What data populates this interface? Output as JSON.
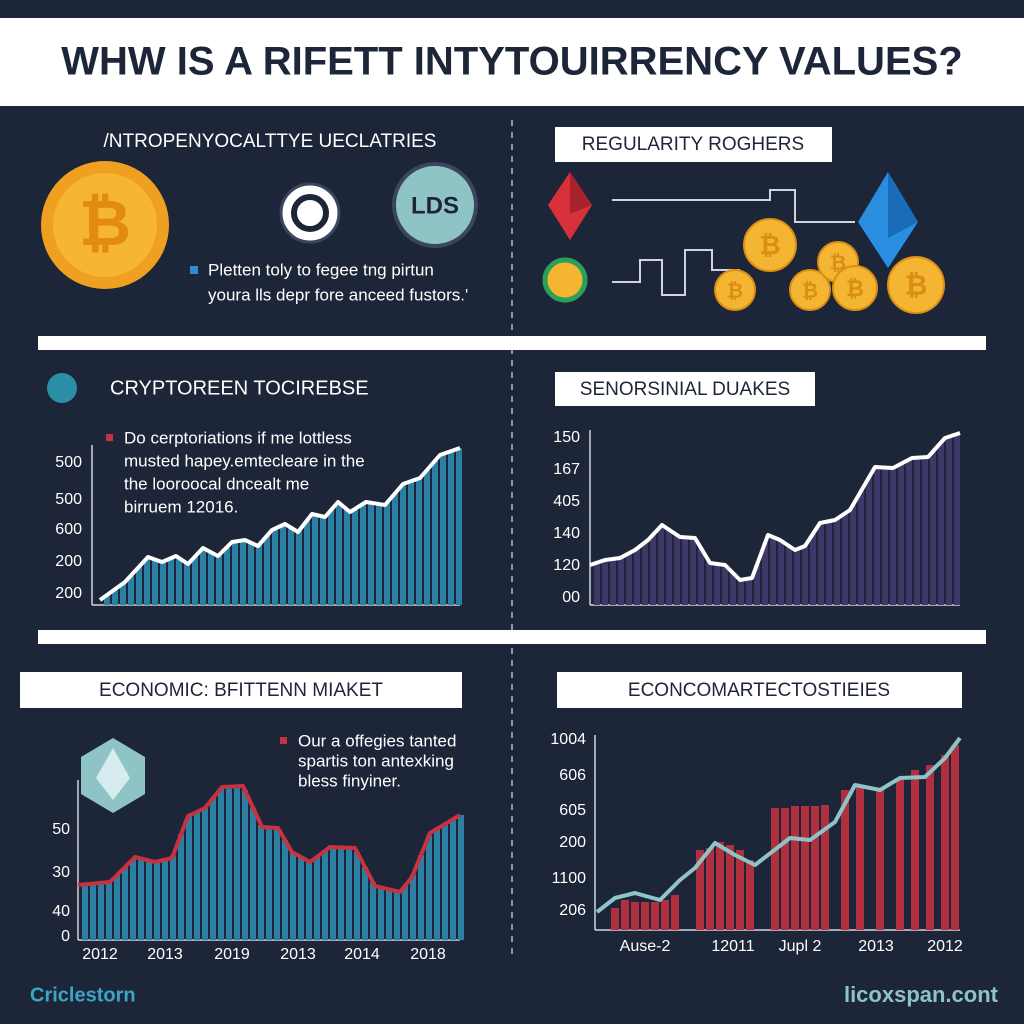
{
  "header": {
    "title": "WHW IS A RIFETT INTYTOUIRRENCY VALUES?"
  },
  "panels": [
    {
      "heading": "/NTROPENYOCALTTYE UECLATRIES",
      "icon_text": "LDS",
      "text": [
        "Pletten toly to fegee tng pirtun",
        "youra lls depr fore anceed fustors.'"
      ]
    },
    {
      "heading": "REGULARITY ROGHERS"
    },
    {
      "heading": "CRYPTOREEN TOCIREBSE",
      "text": [
        "Do cerptoriations if me lottless",
        "musted hapey.emtecleare in the",
        "the looroocal dncealt me",
        "birruem 12016."
      ],
      "y_labels": [
        "500",
        "500",
        "600",
        "200",
        "200"
      ]
    },
    {
      "heading": "SENORSINIAL DUAKES",
      "y_labels": [
        "150",
        "167",
        "405",
        "140",
        "120",
        "00"
      ]
    },
    {
      "heading": "ECONOMIC: BFITTENN MIAKET",
      "text": [
        "Our a offegies tanted",
        "spartis ton antexking",
        "bless finyiner."
      ],
      "y_labels": [
        "50",
        "30",
        "40",
        "0"
      ],
      "x_labels": [
        "2012",
        "2013",
        "2019",
        "2013",
        "2014",
        "2018"
      ]
    },
    {
      "heading": "ECONCOMARTECTOSTIEIES",
      "y_labels": [
        "1004",
        "606",
        "605",
        "200",
        "1100",
        "206"
      ],
      "x_labels": [
        "Ause-2",
        "12011",
        "Jupl 2",
        "2013",
        "2012"
      ]
    }
  ],
  "footer": {
    "left": "Criclestorn",
    "right": "licoxspan.cont"
  }
}
